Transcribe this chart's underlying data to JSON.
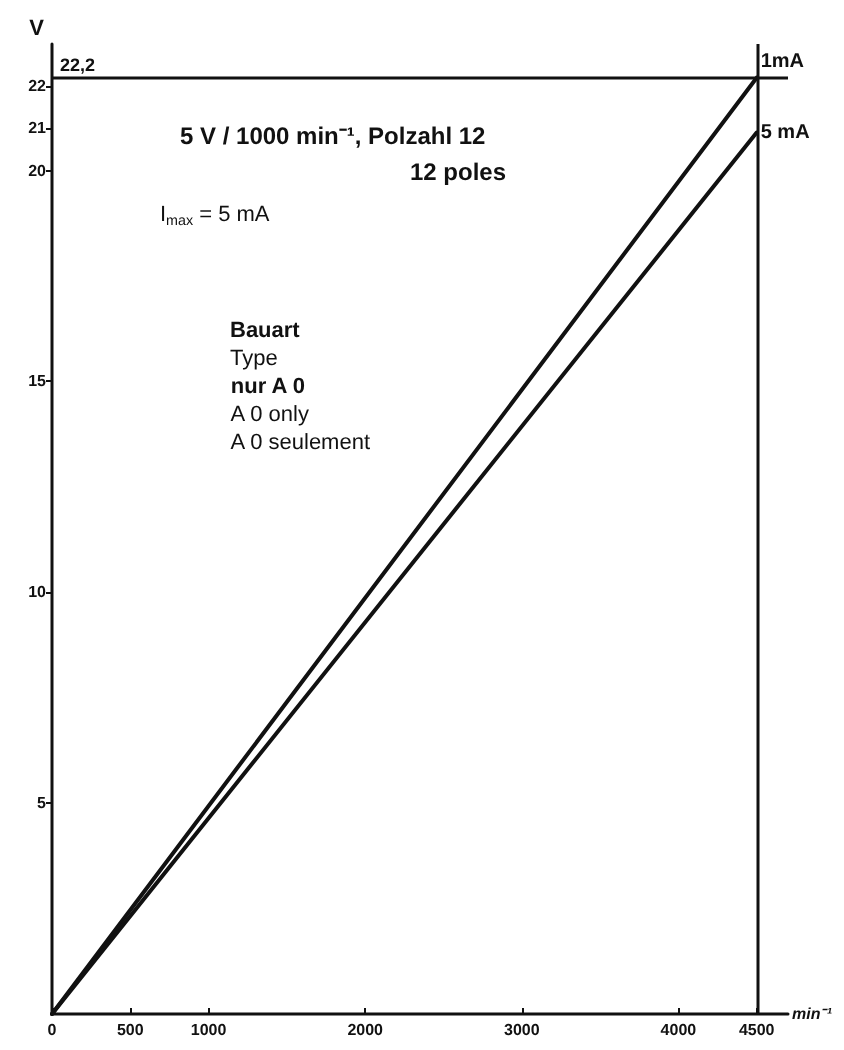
{
  "chart_data": {
    "type": "line",
    "xlabel": "min⁻¹",
    "ylabel": "V",
    "x": [
      0,
      4500
    ],
    "series": [
      {
        "name": "1mA",
        "color": "#111111",
        "values": [
          0,
          22.2
        ]
      },
      {
        "name": "5 mA",
        "color": "#111111",
        "values": [
          0,
          20.9
        ]
      }
    ],
    "xlim": [
      0,
      4700
    ],
    "xticks": [
      0,
      500,
      1000,
      2000,
      3000,
      4000,
      4500
    ],
    "ylim": [
      0,
      23
    ],
    "yticks": [
      5,
      10,
      15,
      20,
      21,
      22
    ],
    "ref_lines": [
      {
        "axis": "y",
        "value": 22.2,
        "label": "22,2"
      },
      {
        "axis": "x",
        "value": 4500
      }
    ],
    "annotations": [
      "5 V / 1000 min⁻¹, Polzahl 12",
      "12 poles",
      "I$_{max}$ = 5 mA",
      "Bauart",
      "Type",
      "nur A 0",
      "A 0 only",
      "A 0 seulement"
    ],
    "grid": false,
    "legend": false,
    "marker": "none",
    "line_style": "solid"
  }
}
